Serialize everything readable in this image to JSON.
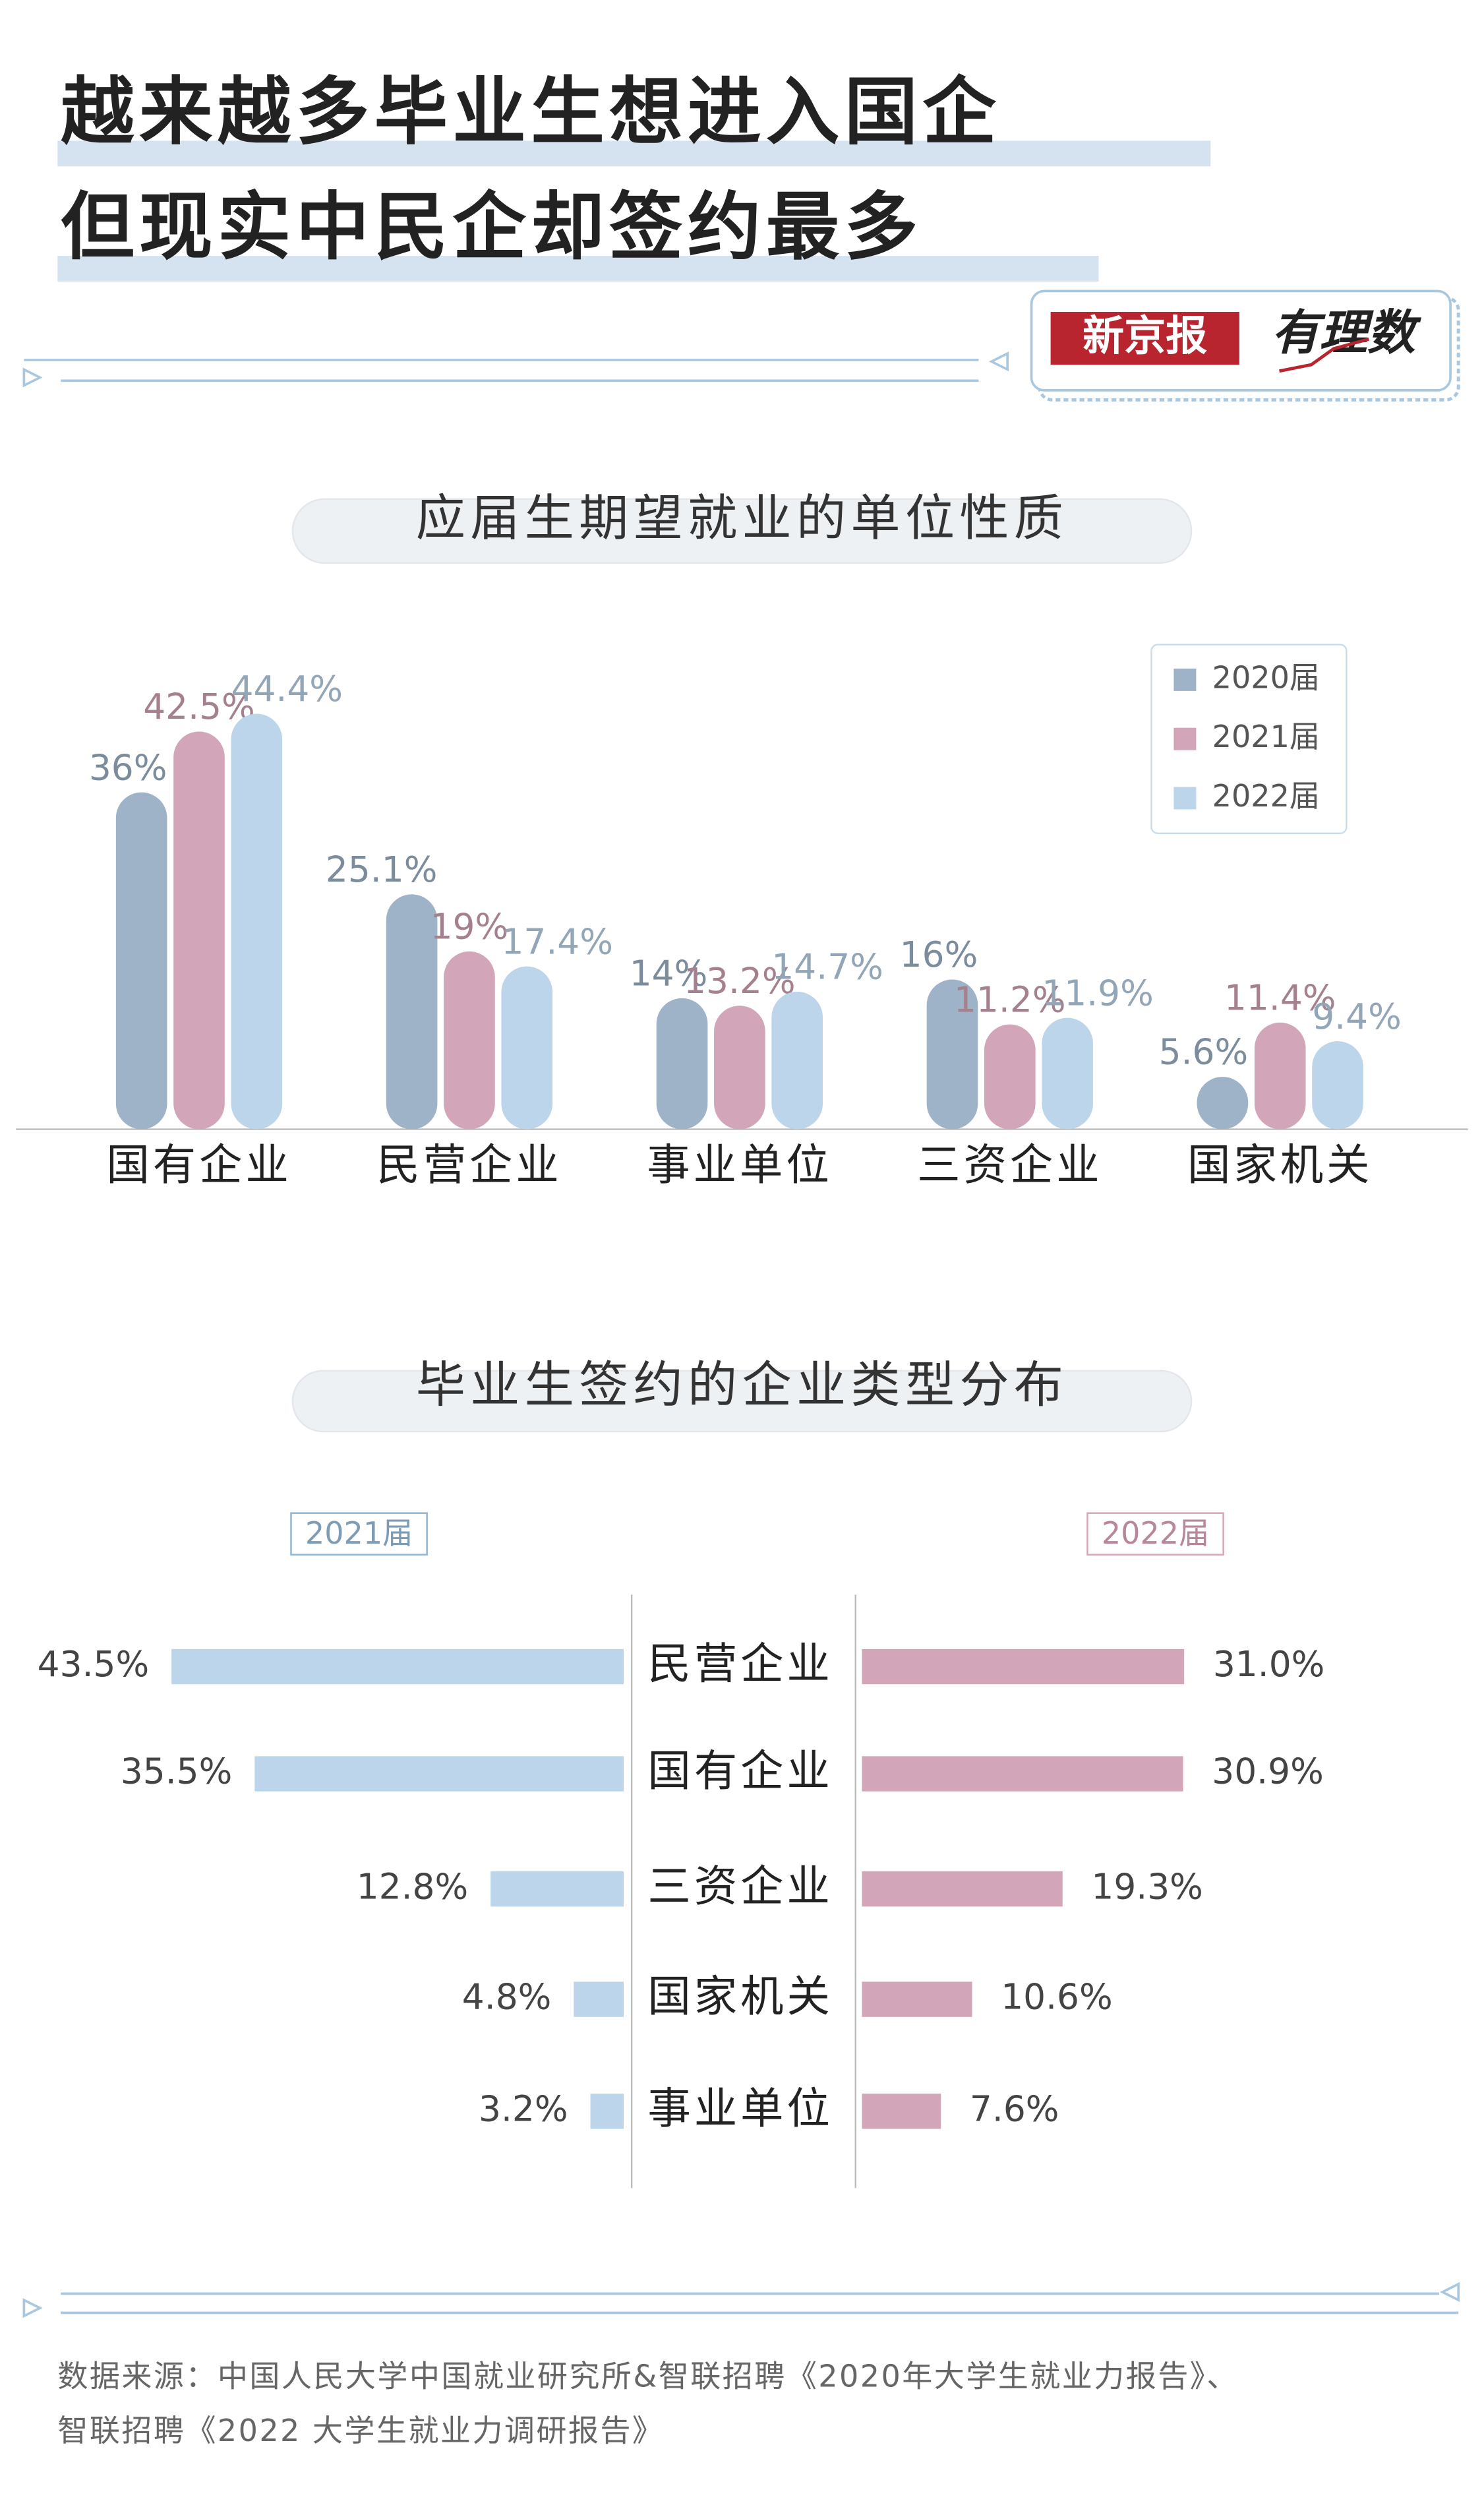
{
  "title_lines": [
    "越来越多毕业生想进入国企",
    "但现实中民企却签约最多"
  ],
  "brand": [
    "新京报",
    "有理数"
  ],
  "chart_data": [
    {
      "type": "bar",
      "title": "应届生期望就业的单位性质",
      "categories": [
        "国有企业",
        "民营企业",
        "事业单位",
        "三资企业",
        "国家机关"
      ],
      "series": [
        {
          "name": "2020届",
          "color": "#9fb3c8",
          "values": [
            36,
            25.1,
            14,
            16,
            5.6
          ],
          "value_labels": [
            "36%",
            "25.1%",
            "14%",
            "16%",
            "5.6%"
          ]
        },
        {
          "name": "2021届",
          "color": "#d3a5b8",
          "values": [
            42.5,
            19,
            13.2,
            11.2,
            11.4
          ],
          "value_labels": [
            "42.5%",
            "19%",
            "13.2%",
            "11.2%",
            "11.4%"
          ]
        },
        {
          "name": "2022届",
          "color": "#bcd5ea",
          "values": [
            44.4,
            17.4,
            14.7,
            11.9,
            9.4
          ],
          "value_labels": [
            "44.4%",
            "17.4%",
            "14.7%",
            "11.9%",
            "9.4%"
          ]
        }
      ],
      "legend": "top-right"
    },
    {
      "type": "butterfly",
      "title": "毕业生签约的企业类型分布",
      "categories": [
        "民营企业",
        "国有企业",
        "三资企业",
        "国家机关",
        "事业单位"
      ],
      "series": [
        {
          "name": "2021届",
          "color": "#bcd5ea",
          "values": [
            43.5,
            35.5,
            12.8,
            4.8,
            3.2
          ],
          "value_labels": [
            "43.5%",
            "35.5%",
            "12.8%",
            "4.8%",
            "3.2%"
          ]
        },
        {
          "name": "2022届",
          "color": "#d3a5b8",
          "values": [
            31.0,
            30.9,
            19.3,
            10.6,
            7.6
          ],
          "value_labels": [
            "31.0%",
            "30.9%",
            "19.3%",
            "10.6%",
            "7.6%"
          ]
        }
      ]
    }
  ],
  "source_lines": [
    "数据来源：中国人民大学中国就业研究所&智联招聘《2020年大学生就业力报告》、",
    "智联招聘《2022 大学生就业力调研报告》"
  ]
}
